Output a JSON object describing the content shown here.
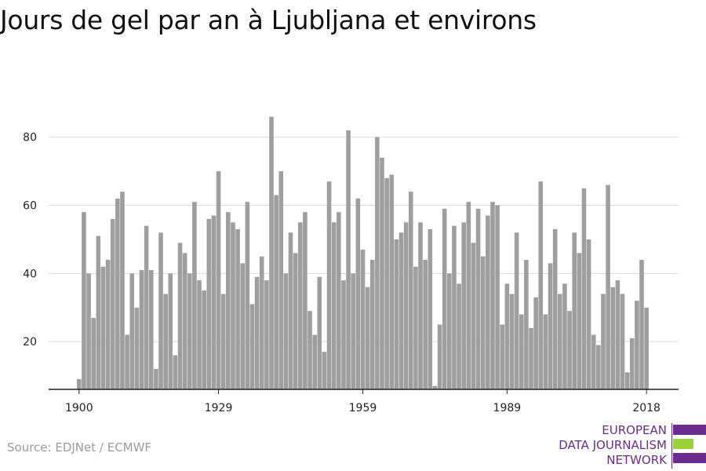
{
  "title": "Jours de gel par an à Ljubljana et environs",
  "source": "Source: EDJNet / ECMWF",
  "logo": {
    "lines": [
      "EUROPEAN",
      "DATA JOURNALISM",
      "NETWORK"
    ]
  },
  "colors": {
    "bar": "#9e9e9e",
    "grid": "#d9d9d9",
    "axis": "#222222",
    "logo_purple": "#6a2c8e",
    "logo_green": "#9bd13a"
  },
  "chart_data": {
    "type": "bar",
    "title": "Jours de gel par an à Ljubljana et environs",
    "xlabel": "",
    "ylabel": "",
    "x_ticks": [
      "1900",
      "1929",
      "1959",
      "1989",
      "2018"
    ],
    "y_ticks": [
      20,
      40,
      60,
      80
    ],
    "ylim": [
      6,
      88
    ],
    "grid": "horizontal",
    "legend": "none",
    "x_start": 1900,
    "x_end": 2018,
    "values": [
      9,
      58,
      40,
      27,
      51,
      42,
      44,
      56,
      62,
      64,
      22,
      40,
      30,
      41,
      54,
      41,
      12,
      52,
      34,
      40,
      16,
      49,
      46,
      40,
      61,
      38,
      35,
      56,
      57,
      70,
      34,
      58,
      55,
      53,
      43,
      61,
      31,
      39,
      45,
      38,
      86,
      63,
      70,
      40,
      52,
      46,
      55,
      58,
      29,
      22,
      39,
      17,
      67,
      55,
      58,
      38,
      82,
      40,
      62,
      47,
      36,
      44,
      80,
      74,
      68,
      69,
      50,
      52,
      55,
      64,
      42,
      55,
      44,
      53,
      7,
      25,
      59,
      40,
      54,
      37,
      55,
      61,
      49,
      59,
      45,
      57,
      61,
      60,
      25,
      37,
      34,
      52,
      28,
      44,
      24,
      33,
      67,
      28,
      43,
      53,
      34,
      37,
      29,
      52,
      46,
      65,
      50,
      22,
      19,
      34,
      66,
      36,
      38,
      34,
      11,
      21,
      32,
      44,
      30
    ]
  }
}
